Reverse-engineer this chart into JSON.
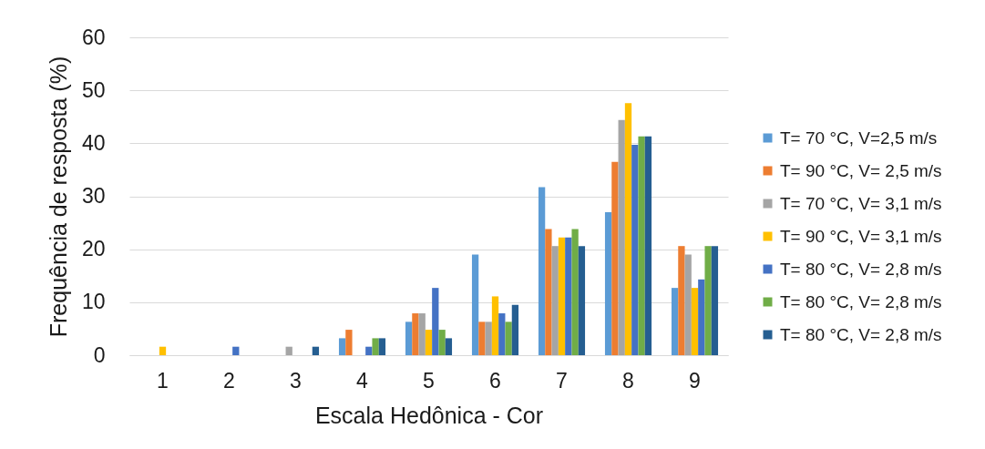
{
  "chart_data": {
    "type": "bar",
    "xlabel": "Escala Hedônica - Cor",
    "ylabel": "Frequência de resposta (%)",
    "categories": [
      "1",
      "2",
      "3",
      "4",
      "5",
      "6",
      "7",
      "8",
      "9"
    ],
    "series": [
      {
        "name": "T= 70 °C, V=2,5 m/s",
        "color": "#5b9bd5",
        "values": [
          0,
          0,
          0,
          3.2,
          6.3,
          19.0,
          31.7,
          27.0,
          12.7
        ]
      },
      {
        "name": "T= 90 °C, V= 2,5 m/s",
        "color": "#ed7d31",
        "values": [
          0,
          0,
          0,
          4.8,
          7.9,
          6.3,
          23.8,
          36.5,
          20.6
        ]
      },
      {
        "name": "T= 70 °C, V= 3,1 m/s",
        "color": "#a5a5a5",
        "values": [
          0,
          0,
          1.6,
          0,
          7.9,
          6.3,
          20.6,
          44.4,
          19.0
        ]
      },
      {
        "name": "T= 90 °C, V= 3,1 m/s",
        "color": "#ffc000",
        "values": [
          1.6,
          0,
          0,
          0,
          4.8,
          11.1,
          22.2,
          47.6,
          12.7
        ]
      },
      {
        "name": "T= 80 °C, V= 2,8 m/s",
        "color": "#4472c4",
        "values": [
          0,
          1.6,
          0,
          1.6,
          12.7,
          7.9,
          22.2,
          39.7,
          14.3
        ]
      },
      {
        "name": "T= 80 °C, V= 2,8 m/s",
        "color": "#70ad47",
        "values": [
          0,
          0,
          0,
          3.2,
          4.8,
          6.3,
          23.8,
          41.3,
          20.6
        ]
      },
      {
        "name": "T= 80 °C, V= 2,8 m/s",
        "color": "#255e91",
        "values": [
          0,
          0,
          1.6,
          3.2,
          3.2,
          9.5,
          20.6,
          41.3,
          20.6
        ]
      }
    ],
    "ylim": [
      0,
      60
    ],
    "yticks": [
      0,
      10,
      20,
      30,
      40,
      50,
      60
    ],
    "grid": "y",
    "legend": "right"
  }
}
